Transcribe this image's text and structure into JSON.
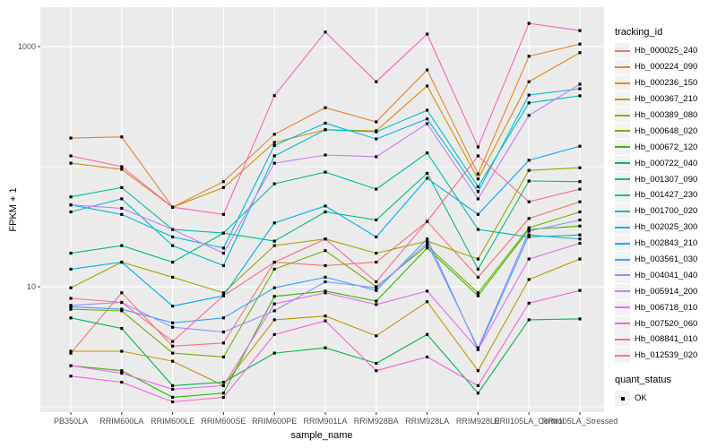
{
  "chart_data": {
    "type": "line",
    "title": "",
    "xlabel": "sample_name",
    "ylabel": "FPKM + 1",
    "y_scale": "log10",
    "ylim": [
      0.9,
      2100
    ],
    "grid": true,
    "legend_position": "right",
    "y_axis_ticks": [
      {
        "value": 1000,
        "label": "1000"
      },
      {
        "value": 10,
        "label": "10"
      }
    ],
    "y_minor_gridlines": [
      1,
      100
    ],
    "categories": [
      "PB350LA",
      "RRIM600LA",
      "RRIM600LE",
      "RRIM600SE",
      "RRIM600PE",
      "RRIM901LA",
      "RRIM928BA",
      "RRIM928LA",
      "RRIM928LE",
      "RRII105LA_Control",
      "RRII105LA_Stressed"
    ],
    "point_marker": {
      "shape": "square",
      "color": "#000000"
    },
    "colors": {
      "panel_bg": "#EBEBEB",
      "gridline": "#FFFFFF",
      "tick_label": "#4D4D4D",
      "axis_title": "#000000",
      "tick_mark": "#333333"
    },
    "series": [
      {
        "name": "Hb_000025_240",
        "color": "#F8766D",
        "values": [
          2.8,
          8.9,
          3.2,
          3.4,
          16,
          15,
          16,
          35,
          12,
          37,
          51
        ]
      },
      {
        "name": "Hb_000224_090",
        "color": "#EA8331",
        "values": [
          173,
          177,
          46,
          75,
          186,
          310,
          236,
          640,
          87,
          830,
          1050
        ]
      },
      {
        "name": "Hb_000236_150",
        "color": "#D89000",
        "values": [
          107,
          95,
          46,
          67,
          159,
          203,
          199,
          470,
          79,
          510,
          890
        ]
      },
      {
        "name": "Hb_000367_210",
        "color": "#C09B00",
        "values": [
          2.9,
          2.9,
          2.4,
          1.5,
          5.3,
          5.7,
          3.9,
          7.5,
          2.0,
          11.5,
          17
        ]
      },
      {
        "name": "Hb_000389_080",
        "color": "#A3A500",
        "values": [
          9.8,
          16,
          12,
          8.9,
          22,
          25,
          19,
          24,
          17,
          93,
          98
        ]
      },
      {
        "name": "Hb_000648_020",
        "color": "#7CAE00",
        "values": [
          6.5,
          6.3,
          2.8,
          2.6,
          14,
          20,
          10,
          22,
          8.9,
          31,
          42
        ]
      },
      {
        "name": "Hb_000672_120",
        "color": "#39B600",
        "values": [
          2.2,
          2.0,
          1.2,
          1.3,
          8.3,
          9.2,
          7.6,
          21,
          8.4,
          30,
          32
        ]
      },
      {
        "name": "Hb_000722_040",
        "color": "#00BB4E",
        "values": [
          5.5,
          4.5,
          1.5,
          1.6,
          2.8,
          3.1,
          2.3,
          4.0,
          1.3,
          5.3,
          5.4
        ]
      },
      {
        "name": "Hb_001307_090",
        "color": "#00BF7D",
        "values": [
          19,
          22,
          16,
          28,
          24,
          42,
          36,
          88,
          14,
          76,
          75
        ]
      },
      {
        "name": "Hb_001427_230",
        "color": "#00C1A3",
        "values": [
          56,
          67,
          30,
          28,
          72,
          90,
          65,
          130,
          30,
          26,
          27
        ]
      },
      {
        "name": "Hb_001700_020",
        "color": "#00BFC4",
        "values": [
          42,
          54,
          22,
          15,
          123,
          203,
          195,
          295,
          68,
          340,
          389
        ]
      },
      {
        "name": "Hb_002025_300",
        "color": "#00BAE0",
        "values": [
          48,
          40,
          26,
          21,
          150,
          230,
          170,
          250,
          62,
          395,
          446
        ]
      },
      {
        "name": "Hb_002843_210",
        "color": "#00B0F6",
        "values": [
          14,
          16,
          6.9,
          8.4,
          34,
          47,
          26,
          80,
          40,
          113,
          148
        ]
      },
      {
        "name": "Hb_003561_030",
        "color": "#35A2FF",
        "values": [
          6.8,
          6.5,
          5.0,
          5.5,
          9.8,
          12,
          9.3,
          25,
          3.0,
          27,
          25
        ]
      },
      {
        "name": "Hb_004041_040",
        "color": "#9590FF",
        "values": [
          7.0,
          7.4,
          4.6,
          4.2,
          6.3,
          11,
          9.8,
          23,
          3.1,
          29,
          36
        ]
      },
      {
        "name": "Hb_005914_200",
        "color": "#C77CFF",
        "values": [
          48,
          45,
          30,
          19,
          107,
          125,
          121,
          228,
          54,
          267,
          486
        ]
      },
      {
        "name": "Hb_006718_010",
        "color": "#E76BF3",
        "values": [
          2.2,
          1.9,
          1.4,
          1.5,
          7.2,
          8.9,
          7.1,
          9.2,
          3.0,
          17,
          23
        ]
      },
      {
        "name": "Hb_007520_060",
        "color": "#FA62DB",
        "values": [
          1.8,
          1.6,
          1.1,
          1.2,
          4.0,
          5.2,
          2.0,
          2.6,
          1.5,
          7.3,
          9.3
        ]
      },
      {
        "name": "Hb_008841_010",
        "color": "#FF62BC",
        "values": [
          123,
          100,
          46,
          40,
          390,
          1320,
          510,
          1270,
          146,
          1560,
          1360
        ]
      },
      {
        "name": "Hb_012539_020",
        "color": "#FF6A98",
        "values": [
          8.0,
          7.4,
          3.5,
          8.4,
          16,
          25,
          11,
          35,
          123,
          51,
          65
        ]
      }
    ]
  },
  "legend": {
    "tracking_title": "tracking_id",
    "quant_title": "quant_status",
    "quant_label": "OK",
    "key_bg": "#F2F2F2"
  }
}
